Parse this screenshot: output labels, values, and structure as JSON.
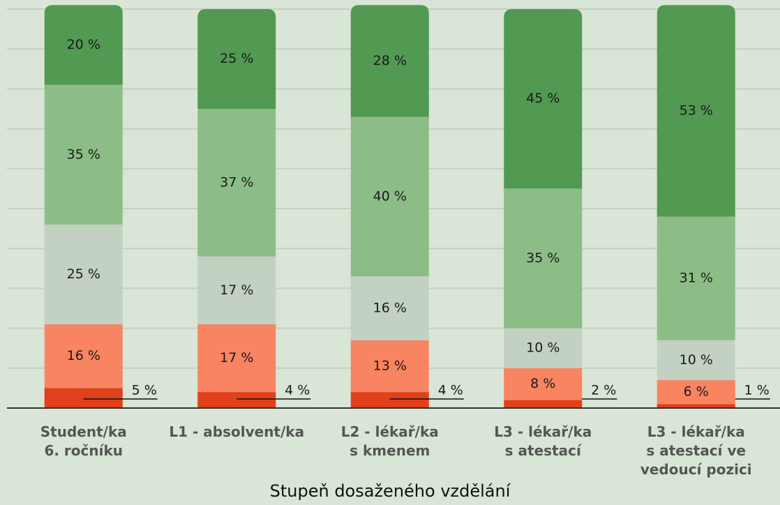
{
  "chart_data": {
    "type": "stacked_bar",
    "x_label": "Stupeň dosaženého vzdělání",
    "categories": [
      "Student/ka\n6. ročníku",
      "L1 - absolvent/ka",
      "L2 - lékař/ka\ns kmenem",
      "L3 - lékař/ka\ns atestací",
      "L3 - lékař/ka\ns atestací ve\nvedoucí pozici"
    ],
    "series": [
      {
        "color": "#e0401a",
        "values": [
          5,
          4,
          4,
          2,
          1
        ],
        "value_labels": [
          "5 %",
          "4 %",
          "4 %",
          "2 %",
          "1 %"
        ]
      },
      {
        "color": "#f98462",
        "values": [
          16,
          17,
          13,
          8,
          6
        ],
        "value_labels": [
          "16 %",
          "17 %",
          "13 %",
          "8 %",
          "6 %"
        ]
      },
      {
        "color": "#c2d1c2",
        "values": [
          25,
          17,
          16,
          10,
          10
        ],
        "value_labels": [
          "25 %",
          "17 %",
          "16 %",
          "10 %",
          "10 %"
        ]
      },
      {
        "color": "#8dbd87",
        "values": [
          35,
          37,
          40,
          35,
          31
        ],
        "value_labels": [
          "35 %",
          "37 %",
          "40 %",
          "35 %",
          "31 %"
        ]
      },
      {
        "color": "#529952",
        "values": [
          20,
          25,
          28,
          45,
          53
        ],
        "value_labels": [
          "20 %",
          "25 %",
          "28 %",
          "45 %",
          "53 %"
        ]
      }
    ],
    "ylim": [
      0,
      100
    ],
    "yticks": [
      0,
      10,
      20,
      30,
      40,
      50,
      60,
      70,
      80,
      90,
      100
    ],
    "grid": true
  }
}
